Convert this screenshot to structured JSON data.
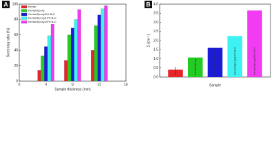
{
  "chart_data": [
    {
      "type": "bar",
      "panel": "A",
      "xlabel": "Sample thickness (mm)",
      "ylabel": "Screening ratio (%)",
      "x": [
        4,
        8,
        12
      ],
      "xlim": [
        0,
        16
      ],
      "xticks": [
        0,
        4,
        8,
        12,
        16
      ],
      "ylim": [
        0,
        100
      ],
      "yticks": [
        0,
        20,
        40,
        60,
        80,
        100
      ],
      "legend": "upper left",
      "series": [
        {
          "name": "Kevlar",
          "color": "#e8262a",
          "values": [
            14,
            27,
            40
          ]
        },
        {
          "name": "Kevlar/Epoxy",
          "color": "#22cc22",
          "values": [
            33,
            60,
            72
          ]
        },
        {
          "name": "Kevlar/Epoxy/5% B₄C",
          "color": "#1c1cd8",
          "values": [
            45,
            69,
            86
          ]
        },
        {
          "name": "Kevlar/Epoxy/10% B₄C",
          "color": "#3cf2f2",
          "values": [
            59,
            80,
            94
          ]
        },
        {
          "name": "Kevlar/Epoxy/20% B₄C",
          "color": "#f23cf2",
          "values": [
            74,
            93,
            98
          ]
        }
      ]
    },
    {
      "type": "bar",
      "panel": "B",
      "xlabel": "Sample",
      "ylabel": "Σ (cm⁻¹)",
      "categories": [
        "Kevlar",
        "Kevlar/Epoxy",
        "Kevlar/Epoxy/5% B₄C",
        "Kevlar/Epoxy/10% B₄C",
        "Kevlar/Epoxy/20% B₄C"
      ],
      "values": [
        0.4,
        1.07,
        1.6,
        2.25,
        3.65
      ],
      "colors": [
        "#e8262a",
        "#22cc22",
        "#1c1cd8",
        "#3cf2f2",
        "#f23cf2"
      ],
      "ylim": [
        0,
        4
      ],
      "yticks": [
        {
          "value": 0,
          "label": "0.0"
        },
        0.5,
        {
          "value": 1,
          "label": "1.0"
        },
        1.5,
        {
          "value": 2,
          "label": "2.0"
        },
        2.5,
        {
          "value": 3,
          "label": "3.0"
        },
        3.5,
        {
          "value": 4,
          "label": "4.0"
        }
      ]
    }
  ]
}
